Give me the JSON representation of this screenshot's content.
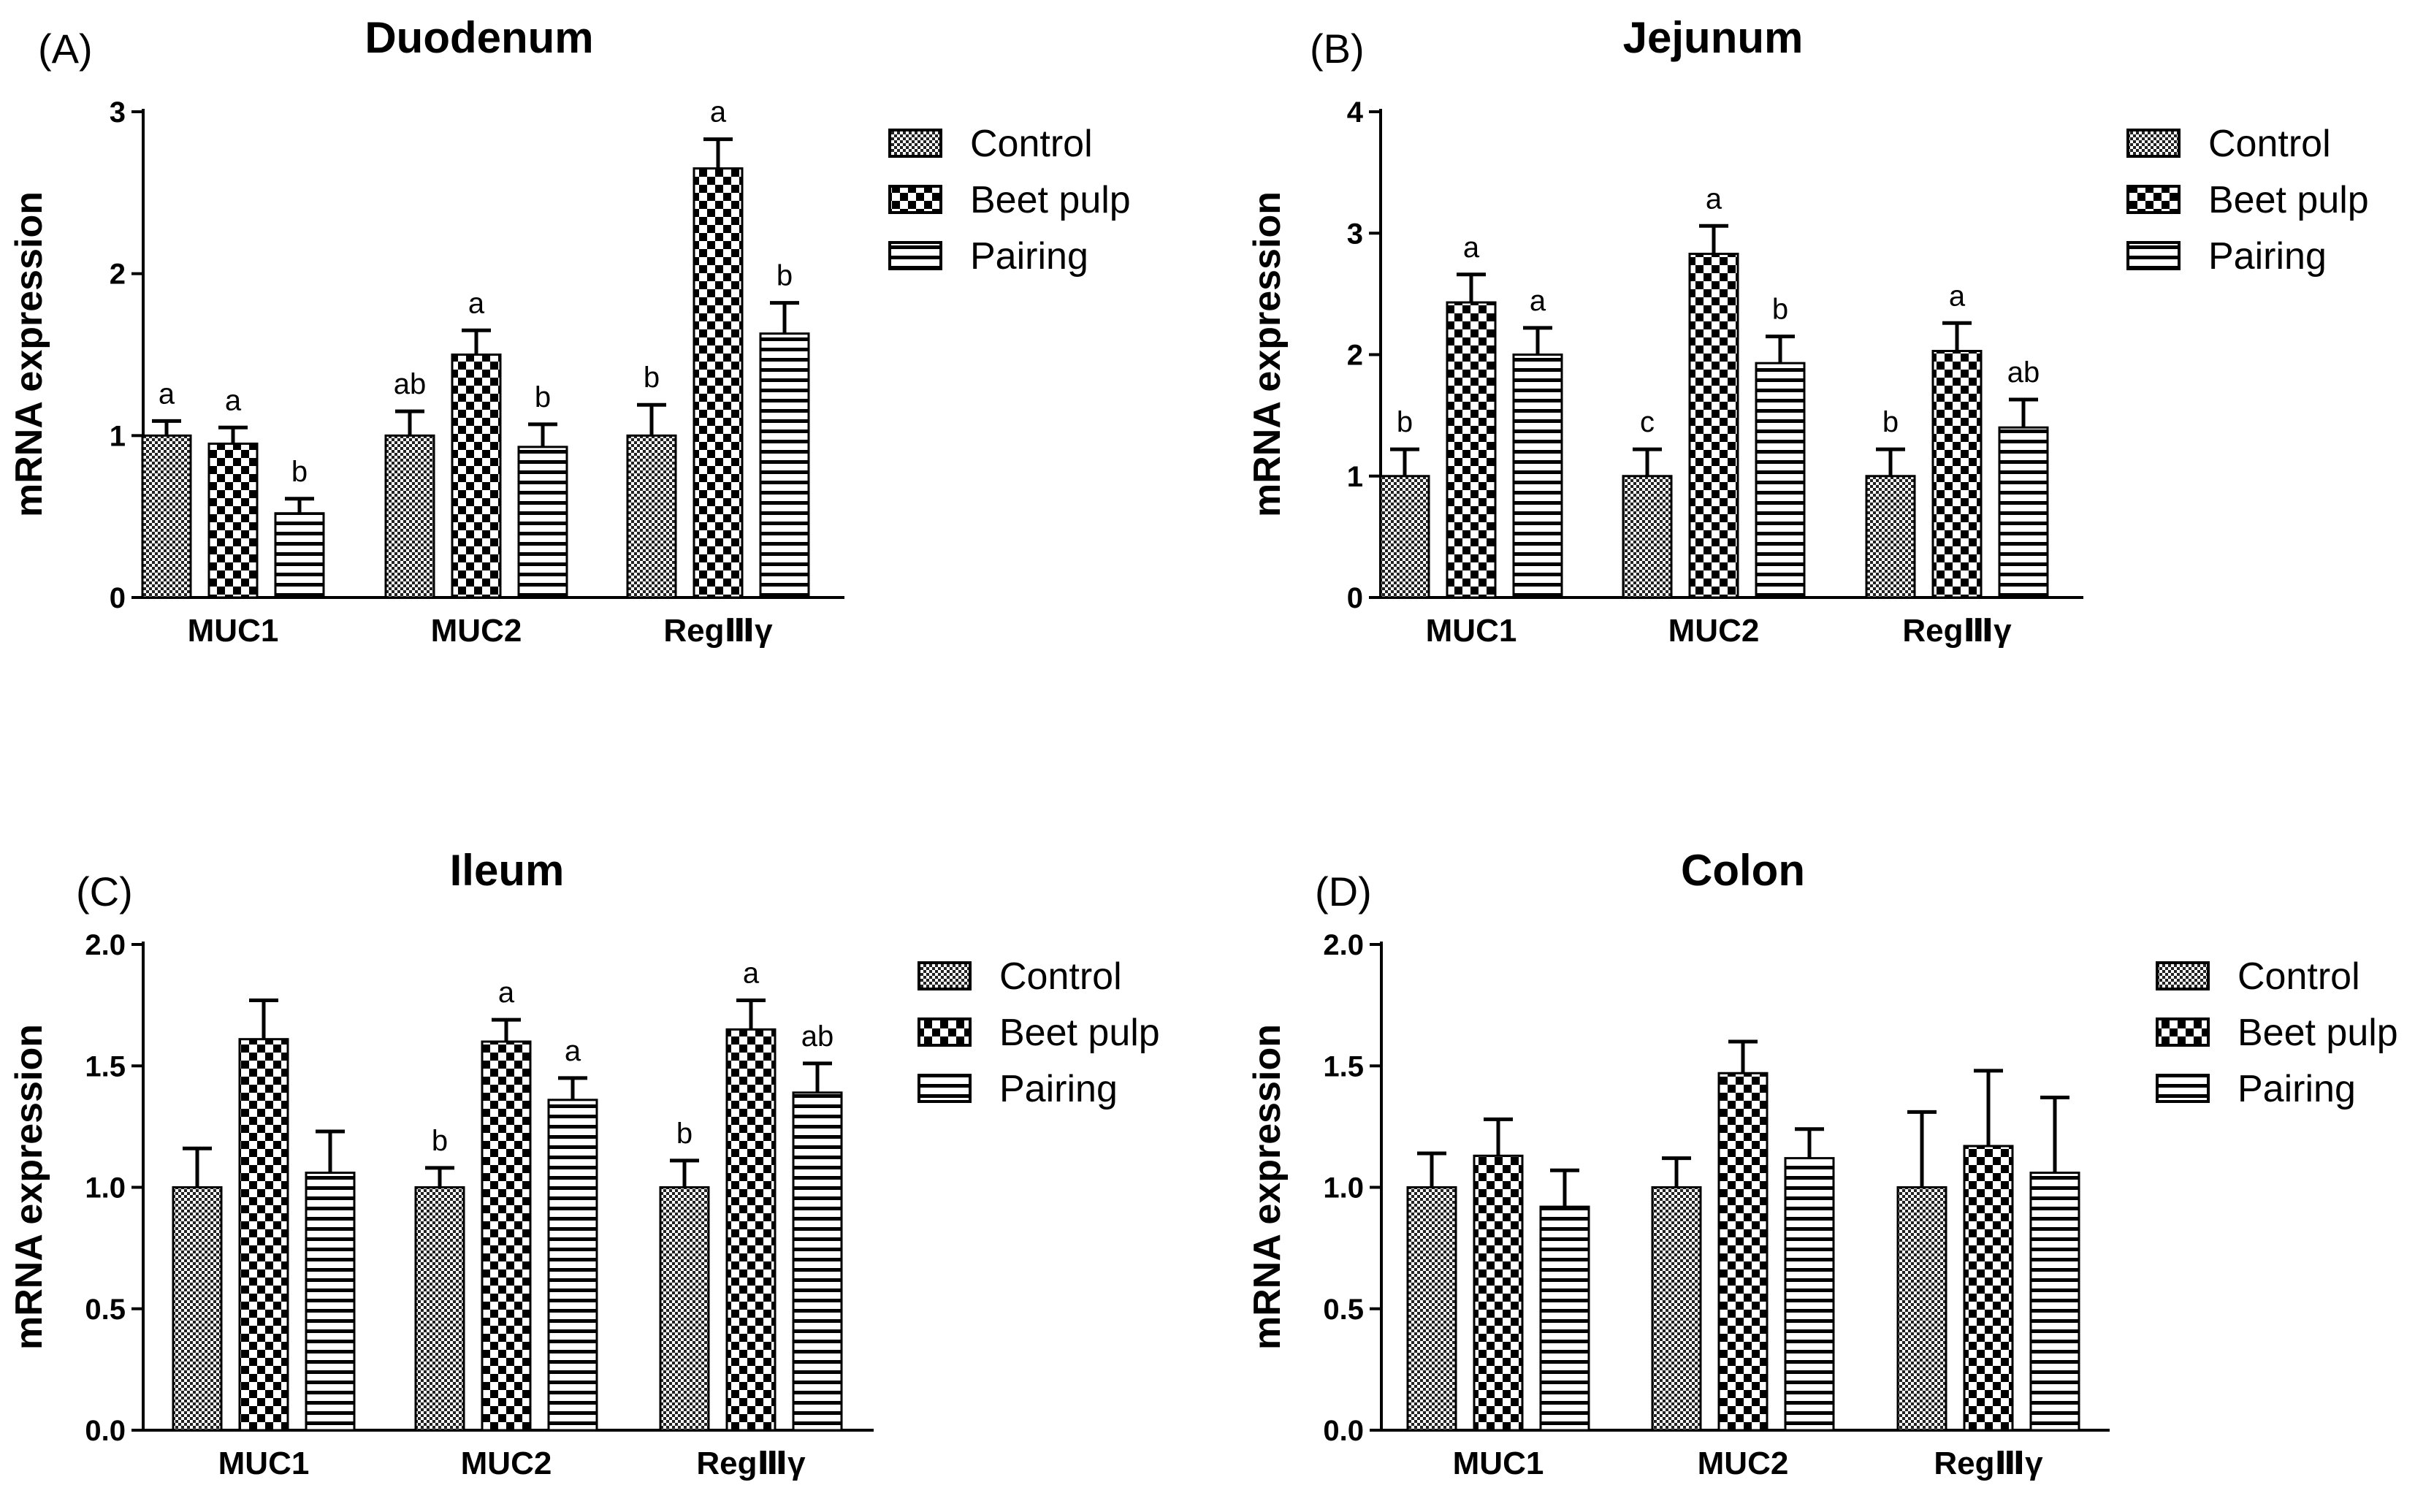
{
  "figure": {
    "series_names": [
      "Control",
      "Beet pulp",
      "Pairing"
    ],
    "ylabel": "mRNA expression",
    "categories": [
      "MUC1",
      "MUC2",
      "RegⅢγ"
    ]
  },
  "chart_data": [
    {
      "type": "bar",
      "panel": "(A)",
      "title": "Duodenum",
      "ylabel": "mRNA expression",
      "ylim": [
        0,
        3
      ],
      "yticks": [
        "0",
        "1",
        "2",
        "3"
      ],
      "categories": [
        "MUC1",
        "MUC2",
        "RegⅢγ"
      ],
      "series": [
        {
          "name": "Control",
          "values": [
            1.0,
            1.0,
            1.0
          ],
          "errors": [
            0.09,
            0.15,
            0.19
          ],
          "letters": [
            "a",
            "ab",
            "b"
          ]
        },
        {
          "name": "Beet pulp",
          "values": [
            0.95,
            1.5,
            2.65
          ],
          "errors": [
            0.1,
            0.15,
            0.18
          ],
          "letters": [
            "a",
            "a",
            "a"
          ]
        },
        {
          "name": "Pairing",
          "values": [
            0.52,
            0.93,
            1.63
          ],
          "errors": [
            0.09,
            0.14,
            0.19
          ],
          "letters": [
            "b",
            "b",
            "b"
          ]
        }
      ]
    },
    {
      "type": "bar",
      "panel": "(B)",
      "title": "Jejunum",
      "ylabel": "mRNA expression",
      "ylim": [
        0,
        4
      ],
      "yticks": [
        "0",
        "1",
        "2",
        "3",
        "4"
      ],
      "categories": [
        "MUC1",
        "MUC2",
        "RegⅢγ"
      ],
      "series": [
        {
          "name": "Control",
          "values": [
            1.0,
            1.0,
            1.0
          ],
          "errors": [
            0.22,
            0.22,
            0.22
          ],
          "letters": [
            "b",
            "c",
            "b"
          ]
        },
        {
          "name": "Beet pulp",
          "values": [
            2.43,
            2.83,
            2.03
          ],
          "errors": [
            0.23,
            0.23,
            0.23
          ],
          "letters": [
            "a",
            "a",
            "a"
          ]
        },
        {
          "name": "Pairing",
          "values": [
            2.0,
            1.93,
            1.4
          ],
          "errors": [
            0.22,
            0.22,
            0.23
          ],
          "letters": [
            "a",
            "b",
            "ab"
          ]
        }
      ]
    },
    {
      "type": "bar",
      "panel": "(C)",
      "title": "Ileum",
      "ylabel": "mRNA expression",
      "ylim": [
        0,
        2
      ],
      "yticks": [
        "0.0",
        "0.5",
        "1.0",
        "1.5",
        "2.0"
      ],
      "categories": [
        "MUC1",
        "MUC2",
        "RegⅢγ"
      ],
      "series": [
        {
          "name": "Control",
          "values": [
            1.0,
            1.0,
            1.0
          ],
          "errors": [
            0.16,
            0.08,
            0.11
          ],
          "letters": [
            "",
            "b",
            "b"
          ]
        },
        {
          "name": "Beet pulp",
          "values": [
            1.61,
            1.6,
            1.65
          ],
          "errors": [
            0.16,
            0.09,
            0.12
          ],
          "letters": [
            "",
            "a",
            "a"
          ]
        },
        {
          "name": "Pairing",
          "values": [
            1.06,
            1.36,
            1.39
          ],
          "errors": [
            0.17,
            0.09,
            0.12
          ],
          "letters": [
            "",
            "a",
            "ab"
          ]
        }
      ]
    },
    {
      "type": "bar",
      "panel": "(D)",
      "title": "Colon",
      "ylabel": "mRNA expression",
      "ylim": [
        0,
        2
      ],
      "yticks": [
        "0.0",
        "0.5",
        "1.0",
        "1.5",
        "2.0"
      ],
      "categories": [
        "MUC1",
        "MUC2",
        "RegⅢγ"
      ],
      "series": [
        {
          "name": "Control",
          "values": [
            1.0,
            1.0,
            1.0
          ],
          "errors": [
            0.14,
            0.12,
            0.31
          ],
          "letters": [
            "",
            "",
            ""
          ]
        },
        {
          "name": "Beet pulp",
          "values": [
            1.13,
            1.47,
            1.17
          ],
          "errors": [
            0.15,
            0.13,
            0.31
          ],
          "letters": [
            "",
            "",
            ""
          ]
        },
        {
          "name": "Pairing",
          "values": [
            0.92,
            1.12,
            1.06
          ],
          "errors": [
            0.15,
            0.12,
            0.31
          ],
          "letters": [
            "",
            "",
            ""
          ]
        }
      ]
    }
  ]
}
